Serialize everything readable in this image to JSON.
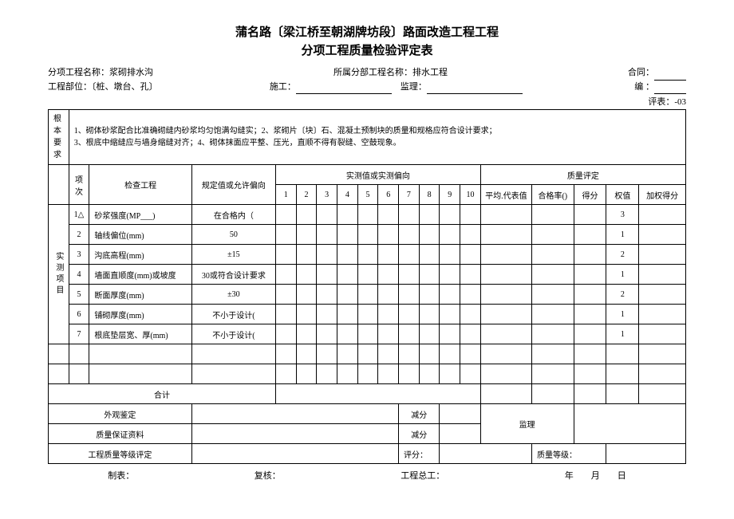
{
  "title_line1": "蒲名路〔梁江桥至朝湖牌坊段〕路面改造工程工程",
  "title_line2": "分项工程质量检验评定表",
  "header": {
    "sub_project_label": "分项工程名称：",
    "sub_project_value": "浆砌排水沟",
    "parent_project_label": "所属分部工程名称：",
    "parent_project_value": "排水工程",
    "contract_label": "合同：",
    "location_label": "工程部位：〔桩、墩台、孔〕",
    "constructor_label": "施工：",
    "supervisor_label": "监理：",
    "serial_label": "编 ：",
    "form_no": "评表：-03"
  },
  "basic_req": {
    "label": "根本要求",
    "text": "1、砌体砂浆配合比准确砌缝内砂浆均匀饱满勾缝实；2、浆砌片〔块〕石、混凝土预制块的质量和规格应符合设计要求；\n3、根底中缩缝应与墙身缩缝对齐；4、砌体抹面应平整、压光，直顺不得有裂缝、空鼓现象。"
  },
  "columns": {
    "idx": "项次",
    "item": "检查工程",
    "spec": "规定值或允许偏向",
    "measured_group": "实测值或实测偏向",
    "quality_group": "质量评定",
    "avg": "平均.代表值",
    "pass_rate": "合格率()",
    "score": "得分",
    "weight": "权值",
    "weighted": "加权得分"
  },
  "side_label": "实测项目",
  "rows": [
    {
      "idx": "1△",
      "item": "砂浆强度(MP___)",
      "spec": "在合格内（    ",
      "weight": "3"
    },
    {
      "idx": "2",
      "item": "轴线偏位(mm)",
      "spec": "50",
      "weight": "1"
    },
    {
      "idx": "3",
      "item": "沟底高程(mm)",
      "spec": "±15",
      "weight": "2"
    },
    {
      "idx": "4",
      "item": "墙面直顺度(mm)或坡度",
      "spec": "30或符合设计要求",
      "weight": "1"
    },
    {
      "idx": "5",
      "item": "断面厚度(mm)",
      "spec": "±30",
      "weight": "2"
    },
    {
      "idx": "6",
      "item": "铺砌厚度(mm)",
      "spec": "不小于设计(",
      "weight": "1"
    },
    {
      "idx": "7",
      "item": "根底垫层宽、厚(mm)",
      "spec": "不小于设计(",
      "weight": "1"
    }
  ],
  "total_row": "合计",
  "bottom": {
    "appearance": "外观鉴定",
    "deduct": "减分",
    "qa_data": "质量保证资料",
    "supervisor": "监理",
    "grade_eval": "工程质量等级评定",
    "score_label": "评分：",
    "grade_label": "质量等级："
  },
  "footer": {
    "maker": "制表：",
    "reviewer": "复核：",
    "chief": "工程总工：",
    "date": "年　　月　　日"
  }
}
